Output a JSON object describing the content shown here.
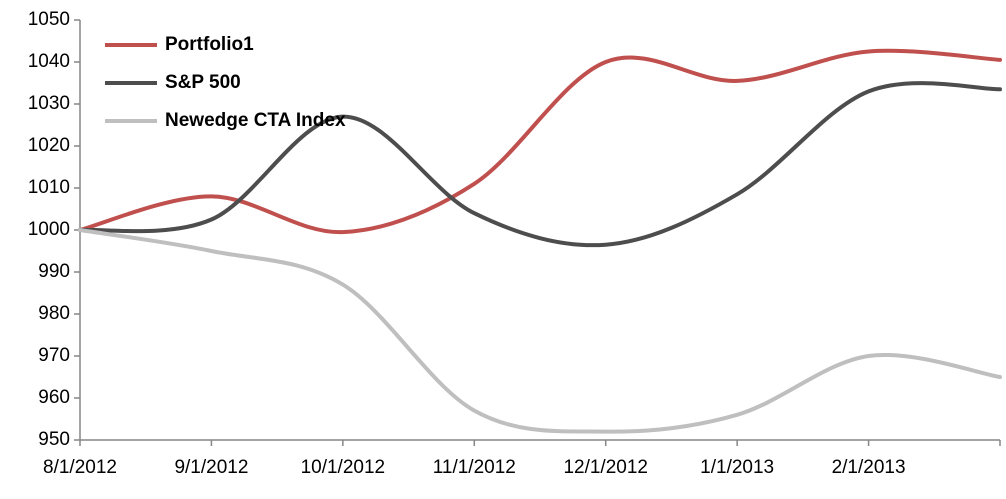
{
  "chart_data": {
    "type": "line",
    "categories": [
      "8/1/2012",
      "9/1/2012",
      "10/1/2012",
      "11/1/2012",
      "12/1/2012",
      "1/1/2013",
      "2/1/2013",
      null
    ],
    "series": [
      {
        "name": "Portfolio1",
        "color": "#c0504d",
        "values": [
          1000,
          1008,
          999.5,
          1011,
          1040,
          1035.5,
          1042.5,
          1040.5
        ]
      },
      {
        "name": "S&P 500",
        "color": "#4d4d4d",
        "values": [
          1000,
          1002.5,
          1027,
          1004,
          996.5,
          1008.5,
          1033,
          1033.5
        ]
      },
      {
        "name": "Newedge CTA Index",
        "color": "#bfbfbf",
        "values": [
          1000,
          995,
          987,
          957,
          952,
          956,
          970,
          965
        ]
      }
    ],
    "ylim": [
      950,
      1050
    ],
    "yticks": [
      950,
      960,
      970,
      980,
      990,
      1000,
      1010,
      1020,
      1030,
      1040,
      1050
    ],
    "grid": false,
    "legend": "top-left"
  }
}
